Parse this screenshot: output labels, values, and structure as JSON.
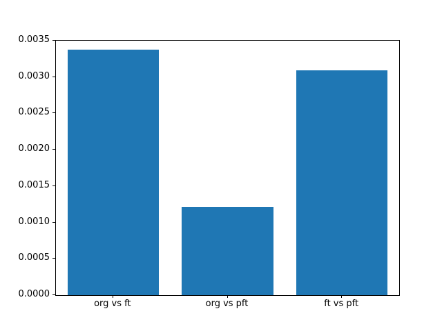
{
  "chart_data": {
    "type": "bar",
    "categories": [
      "org vs ft",
      "org vs pft",
      "ft vs pft"
    ],
    "values": [
      0.00338,
      0.00121,
      0.00309
    ],
    "title": "",
    "xlabel": "",
    "ylabel": "",
    "ylim": [
      0.0,
      0.0035
    ],
    "yticks": [
      0.0,
      0.0005,
      0.001,
      0.0015,
      0.002,
      0.0025,
      0.003,
      0.0035
    ],
    "ytick_labels": [
      "0.0000",
      "0.0005",
      "0.0010",
      "0.0015",
      "0.0020",
      "0.0025",
      "0.0030",
      "0.0035"
    ],
    "bar_color": "#1f77b4",
    "bar_width_fraction": 0.8,
    "grid": false,
    "legend": null
  }
}
